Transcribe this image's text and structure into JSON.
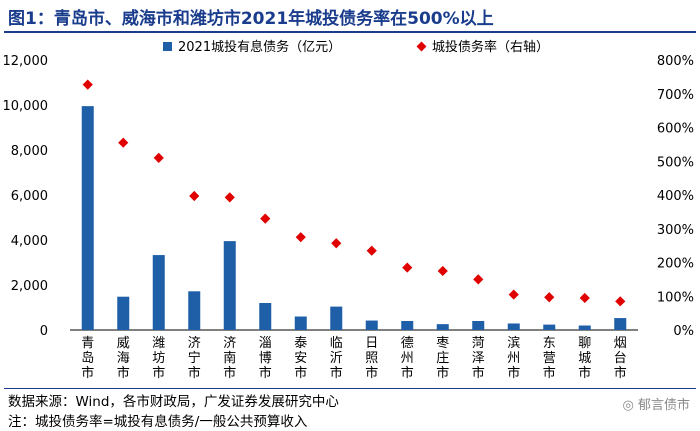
{
  "title": "图1：青岛市、威海市和潍坊市2021年城投债务率在500%以上",
  "chart_data": {
    "type": "bar+scatter",
    "categories": [
      "青岛市",
      "威海市",
      "潍坊市",
      "济宁市",
      "济南市",
      "淄博市",
      "泰安市",
      "临沂市",
      "日照市",
      "德州市",
      "枣庄市",
      "菏泽市",
      "滨州市",
      "东营市",
      "聊城市",
      "烟台市"
    ],
    "series": [
      {
        "name": "2021城投有息债务（亿元）",
        "type": "bar",
        "axis": "left",
        "color": "#1f5fa8",
        "values": [
          9950,
          1480,
          3330,
          1720,
          3950,
          1200,
          600,
          1040,
          420,
          400,
          260,
          400,
          290,
          240,
          200,
          530
        ]
      },
      {
        "name": "城投债务率（右轴）",
        "type": "scatter",
        "axis": "right",
        "color": "#e00000",
        "values": [
          727,
          555,
          510,
          397,
          393,
          330,
          275,
          257,
          235,
          185,
          175,
          150,
          105,
          97,
          95,
          85
        ]
      }
    ],
    "y_left": {
      "min": 0,
      "max": 12000,
      "ticks": [
        "0",
        "2,000",
        "4,000",
        "6,000",
        "8,000",
        "10,000",
        "12,000"
      ]
    },
    "y_right": {
      "min": 0,
      "max": 800,
      "ticks": [
        "0%",
        "100%",
        "200%",
        "300%",
        "400%",
        "500%",
        "600%",
        "700%",
        "800%"
      ]
    },
    "legend": [
      "2021城投有息债务（亿元）",
      "城投债务率（右轴）"
    ]
  },
  "source": "数据来源：Wind，各市财政局，广发证券发展研究中心",
  "note": "注：城投债务率=城投有息债务/一般公共预算收入",
  "watermark": "郁言债市"
}
